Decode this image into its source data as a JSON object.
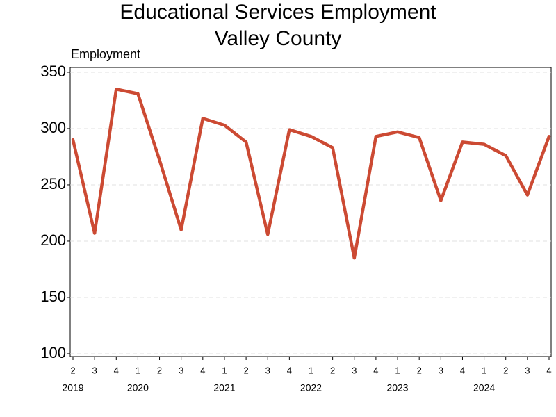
{
  "chart_data": {
    "type": "line",
    "title": "Educational Services Employment",
    "subtitle": "Valley County",
    "y_label": "Employment",
    "categories": [
      "2",
      "3",
      "4",
      "1",
      "2",
      "3",
      "4",
      "1",
      "2",
      "3",
      "4",
      "1",
      "2",
      "3",
      "4",
      "1",
      "2",
      "3",
      "4",
      "1",
      "2",
      "3",
      "4"
    ],
    "category_groups": [
      "2019",
      null,
      null,
      "2020",
      null,
      null,
      null,
      "2021",
      null,
      null,
      null,
      "2022",
      null,
      null,
      null,
      "2023",
      null,
      null,
      null,
      "2024",
      null,
      null,
      null
    ],
    "values": [
      290,
      207,
      335,
      331,
      272,
      210,
      309,
      303,
      288,
      206,
      299,
      293,
      283,
      185,
      293,
      297,
      292,
      236,
      288,
      286,
      276,
      241,
      293
    ],
    "color": "#cc4a33",
    "ylim": [
      97.5,
      354.3
    ],
    "yticks": [
      100,
      150,
      200,
      250,
      300,
      350
    ],
    "grid": true
  }
}
